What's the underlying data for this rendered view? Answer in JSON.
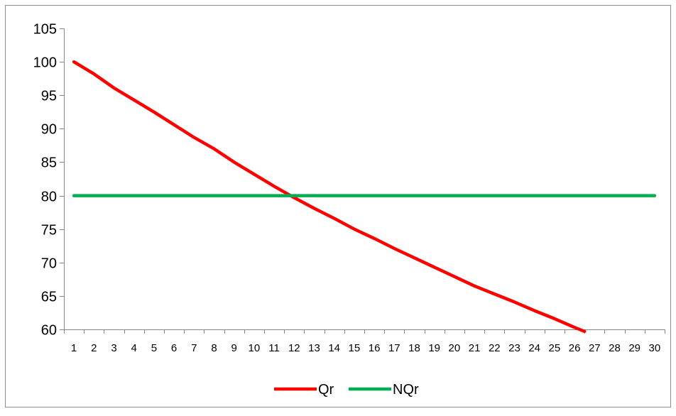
{
  "chart_data": {
    "type": "line",
    "title": "",
    "xlabel": "",
    "ylabel": "",
    "x": [
      1,
      2,
      3,
      4,
      5,
      6,
      7,
      8,
      9,
      10,
      11,
      12,
      13,
      14,
      15,
      16,
      17,
      18,
      19,
      20,
      21,
      22,
      23,
      24,
      25,
      26,
      27,
      28,
      29,
      30
    ],
    "x_tick_labels": [
      "1",
      "2",
      "3",
      "4",
      "5",
      "6",
      "7",
      "8",
      "9",
      "10",
      "11",
      "12",
      "13",
      "14",
      "15",
      "16",
      "17",
      "18",
      "19",
      "20",
      "21",
      "22",
      "23",
      "24",
      "25",
      "26",
      "27",
      "28",
      "29",
      "30"
    ],
    "ylim": [
      60,
      105
    ],
    "y_ticks": [
      60,
      65,
      70,
      75,
      80,
      85,
      90,
      95,
      100,
      105
    ],
    "y_tick_labels": [
      "60",
      "65",
      "70",
      "75",
      "80",
      "85",
      "90",
      "95",
      "100",
      "105"
    ],
    "grid": false,
    "legend_position": "bottom",
    "series": [
      {
        "name": "Qr",
        "color": "#ff0000",
        "x": [
          1,
          2,
          3,
          4,
          5,
          6,
          7,
          8,
          9,
          10,
          11,
          12,
          13,
          14,
          15,
          16,
          17,
          18,
          19,
          20,
          21,
          22,
          23,
          24,
          25,
          26,
          26.5
        ],
        "values": [
          100,
          98.2,
          96.1,
          94.3,
          92.5,
          90.6,
          88.7,
          87.0,
          85.0,
          83.2,
          81.4,
          79.7,
          78.1,
          76.6,
          75.0,
          73.6,
          72.1,
          70.7,
          69.3,
          67.9,
          66.5,
          65.3,
          64.1,
          62.8,
          61.6,
          60.3,
          59.7
        ]
      },
      {
        "name": "NQr",
        "color": "#00b050",
        "x": [
          1,
          30
        ],
        "values": [
          80,
          80
        ]
      }
    ]
  }
}
